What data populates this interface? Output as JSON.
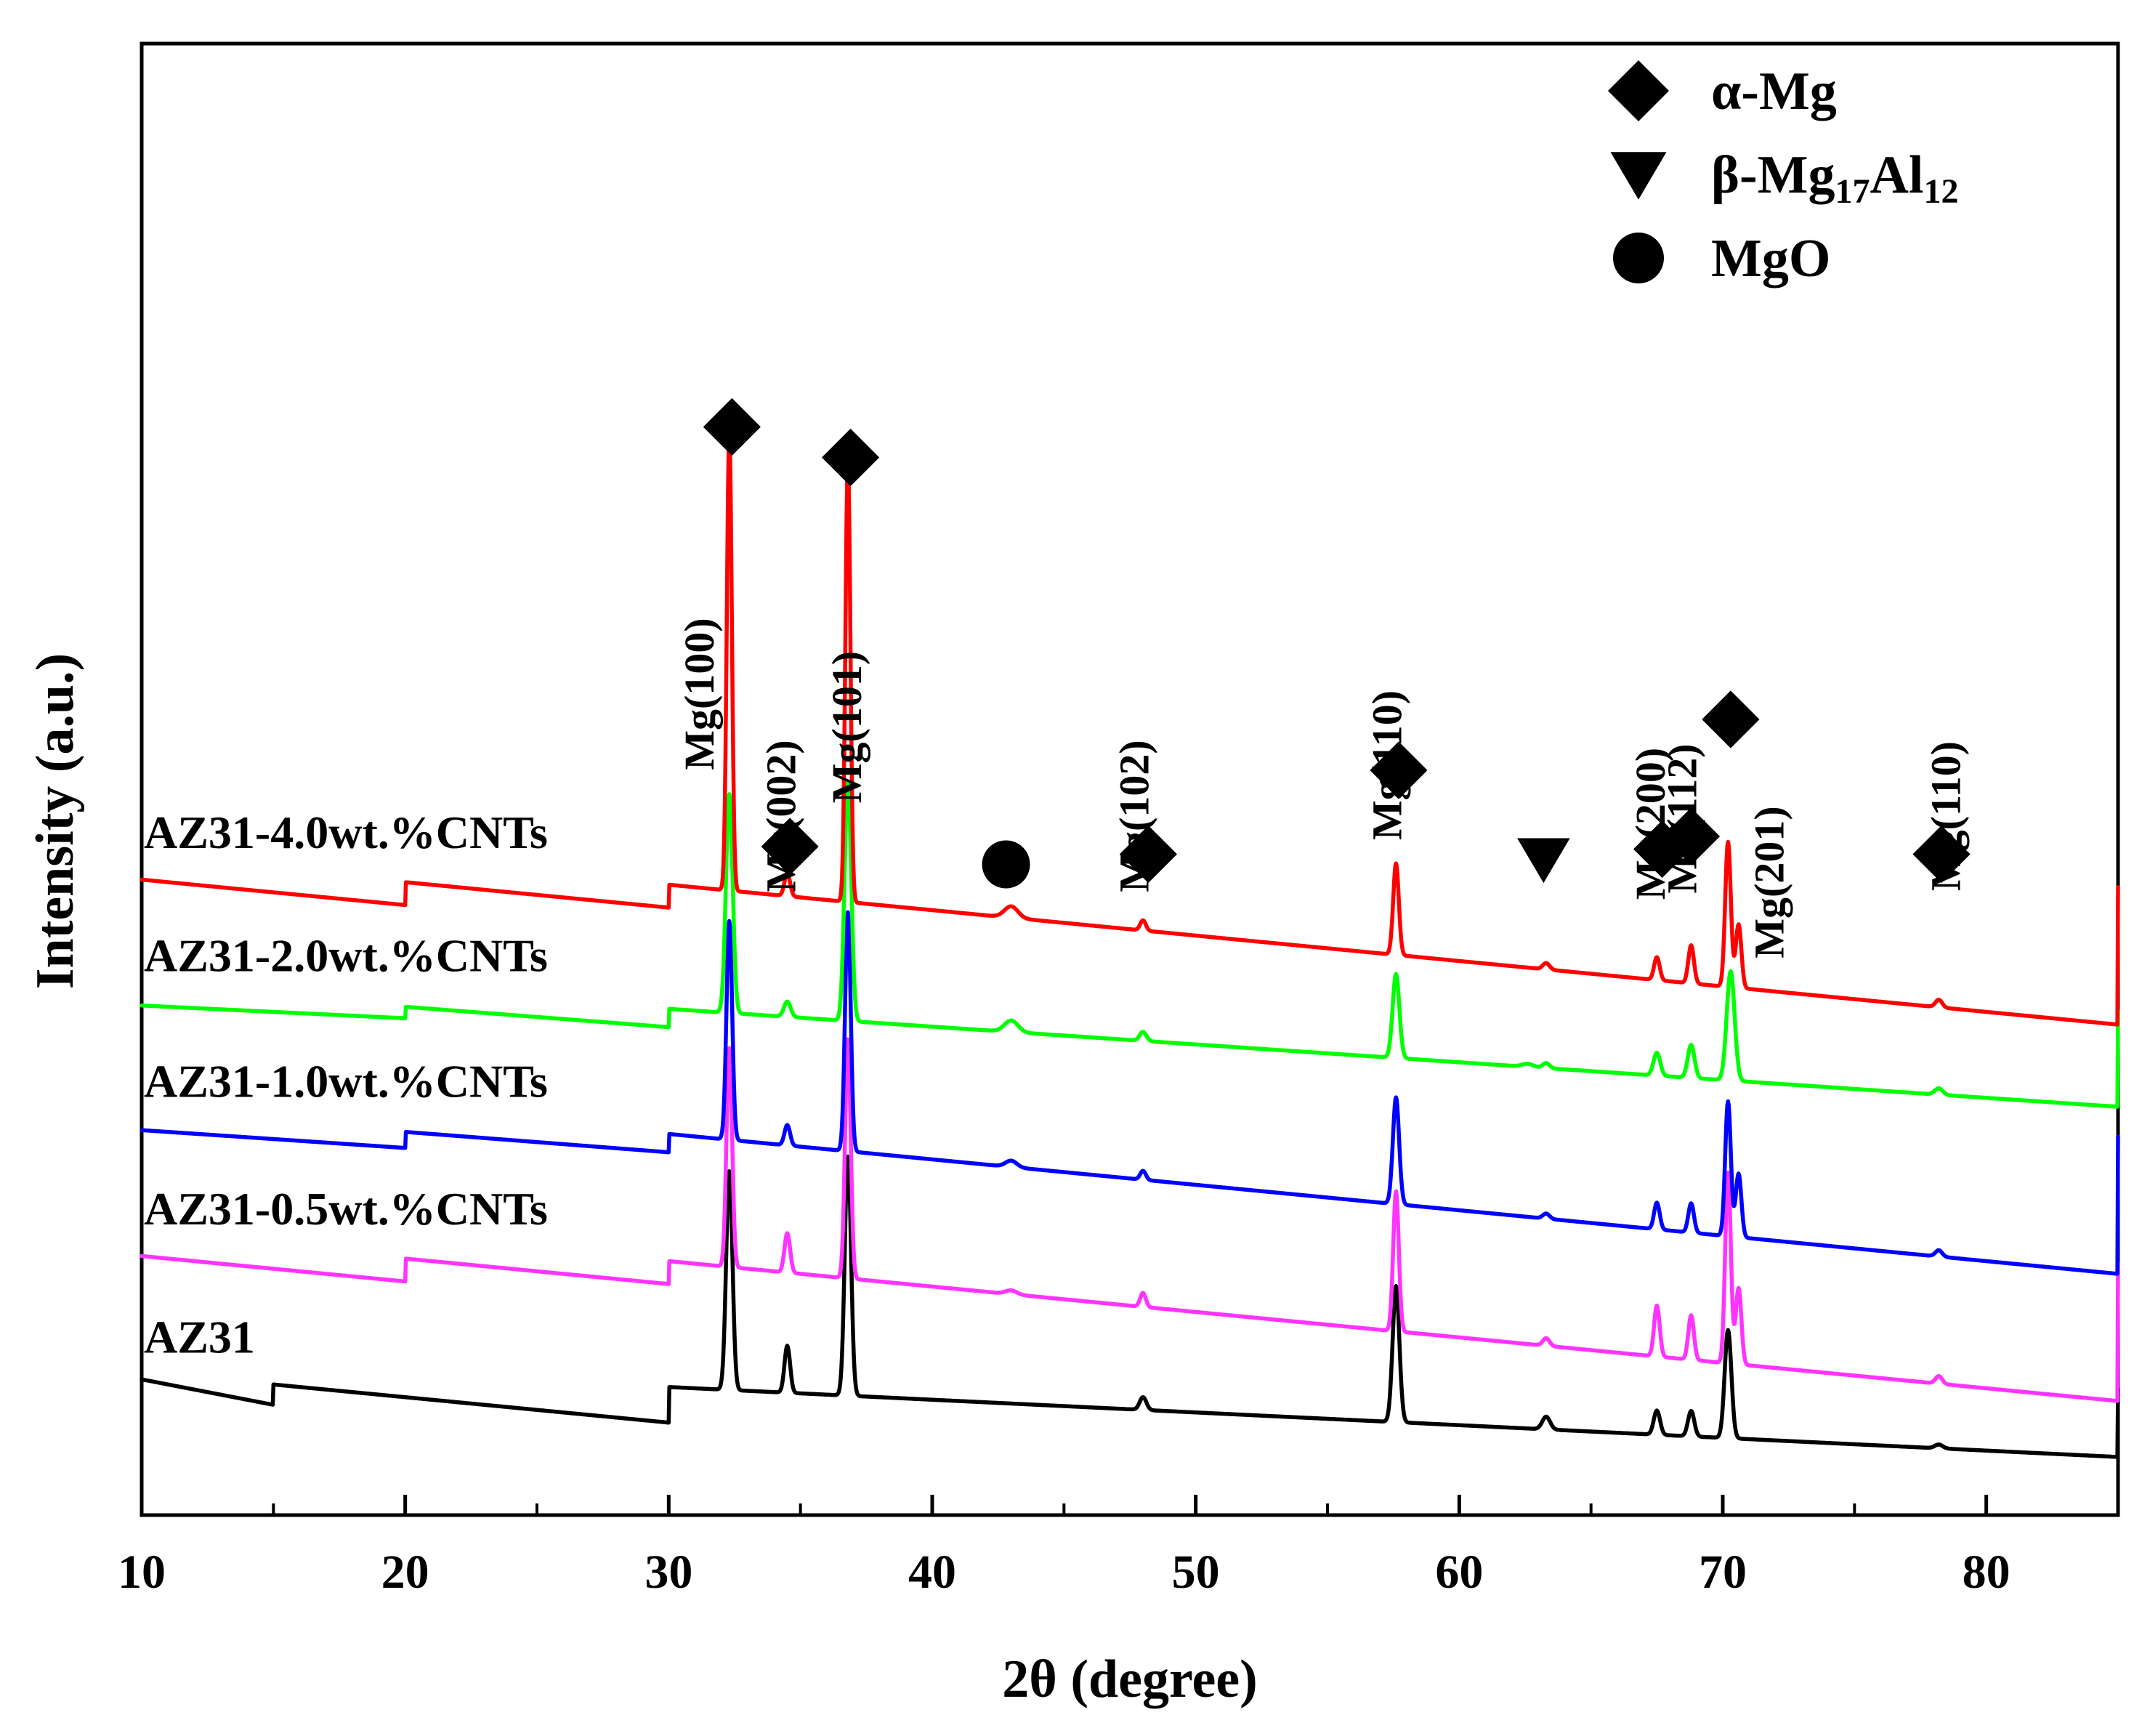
{
  "chart_data": {
    "type": "line",
    "title": "",
    "xlabel": "2θ (degree)",
    "ylabel": "Intensity (a.u.)",
    "xlim": [
      10,
      85
    ],
    "x_ticks": [
      10,
      20,
      30,
      40,
      50,
      60,
      70,
      80
    ],
    "y_ticks": [],
    "grid": false,
    "legend_position": "top-right",
    "legend": [
      {
        "marker": "diamond",
        "parts": [
          {
            "t": "α-Mg",
            "sub": false
          }
        ]
      },
      {
        "marker": "triangle-down",
        "parts": [
          {
            "t": "β-Mg",
            "sub": false
          },
          {
            "t": "17",
            "sub": true
          },
          {
            "t": "Al",
            "sub": false
          },
          {
            "t": "12",
            "sub": true
          }
        ]
      },
      {
        "marker": "circle",
        "parts": [
          {
            "t": "MgO",
            "sub": false
          }
        ]
      }
    ],
    "series": [
      {
        "name": "AZ31",
        "color": "#000000",
        "baseline": [
          [
            10,
            1.05
          ],
          [
            15,
            0.85
          ],
          [
            30,
            0.75
          ],
          [
            85,
            0.7
          ]
        ],
        "peaks": [
          [
            32.3,
            8.6,
            0.28
          ],
          [
            34.5,
            1.85,
            0.25
          ],
          [
            36.8,
            9.4,
            0.28
          ],
          [
            48.0,
            0.5,
            0.3
          ],
          [
            57.6,
            5.35,
            0.3
          ],
          [
            63.3,
            0.5,
            0.35
          ],
          [
            67.5,
            0.95,
            0.28
          ],
          [
            68.8,
            1.0,
            0.28
          ],
          [
            70.2,
            4.25,
            0.3
          ],
          [
            78.2,
            0.15,
            0.35
          ]
        ]
      },
      {
        "name": "AZ31-0.5wt.%CNTs",
        "color": "#ff33ff",
        "baseline": [
          [
            10,
            0.9
          ],
          [
            20,
            0.8
          ],
          [
            30,
            0.7
          ],
          [
            85,
            0.6
          ]
        ],
        "peaks": [
          [
            32.3,
            8.6,
            0.25
          ],
          [
            34.5,
            1.55,
            0.25
          ],
          [
            36.8,
            9.4,
            0.25
          ],
          [
            43.0,
            0.15,
            0.5
          ],
          [
            48.0,
            0.55,
            0.25
          ],
          [
            57.6,
            5.5,
            0.25
          ],
          [
            63.3,
            0.3,
            0.3
          ],
          [
            67.5,
            2.0,
            0.25
          ],
          [
            68.8,
            1.75,
            0.25
          ],
          [
            70.2,
            7.5,
            0.25
          ],
          [
            70.6,
            3.0,
            0.25
          ],
          [
            78.2,
            0.3,
            0.3
          ]
        ]
      },
      {
        "name": "AZ31-1.0wt.%CNTs",
        "color": "#0000ff",
        "baseline": [
          [
            10,
            0.85
          ],
          [
            20,
            0.78
          ],
          [
            30,
            0.7
          ],
          [
            85,
            0.6
          ]
        ],
        "peaks": [
          [
            32.3,
            8.6,
            0.25
          ],
          [
            34.5,
            0.8,
            0.25
          ],
          [
            36.8,
            9.4,
            0.25
          ],
          [
            43.0,
            0.25,
            0.5
          ],
          [
            48.0,
            0.35,
            0.25
          ],
          [
            57.6,
            4.2,
            0.28
          ],
          [
            63.3,
            0.2,
            0.3
          ],
          [
            67.5,
            1.05,
            0.25
          ],
          [
            68.8,
            1.15,
            0.25
          ],
          [
            70.2,
            5.3,
            0.25
          ],
          [
            70.6,
            2.5,
            0.25
          ],
          [
            78.2,
            0.25,
            0.3
          ]
        ]
      },
      {
        "name": "AZ31-2.0wt.%CNTs",
        "color": "#00ff00",
        "baseline": [
          [
            10,
            0.75
          ],
          [
            20,
            0.7
          ],
          [
            30,
            0.62
          ],
          [
            85,
            0.55
          ]
        ],
        "peaks": [
          [
            32.3,
            8.6,
            0.3
          ],
          [
            34.5,
            0.6,
            0.3
          ],
          [
            36.8,
            9.4,
            0.3
          ],
          [
            43.0,
            0.45,
            0.6
          ],
          [
            48.0,
            0.35,
            0.3
          ],
          [
            57.6,
            3.3,
            0.3
          ],
          [
            62.6,
            0.12,
            0.5
          ],
          [
            63.3,
            0.2,
            0.3
          ],
          [
            67.5,
            0.9,
            0.3
          ],
          [
            68.8,
            1.3,
            0.3
          ],
          [
            70.3,
            4.3,
            0.35
          ],
          [
            78.2,
            0.25,
            0.35
          ]
        ]
      },
      {
        "name": "AZ31-4.0wt.%CNTs",
        "color": "#ff0000",
        "baseline": [
          [
            10,
            0.7
          ],
          [
            20,
            0.6
          ],
          [
            30,
            0.5
          ],
          [
            85,
            0.4
          ]
        ],
        "peaks": [
          [
            32.3,
            18.0,
            0.22
          ],
          [
            34.5,
            0.9,
            0.25
          ],
          [
            36.8,
            17.4,
            0.22
          ],
          [
            43.0,
            0.45,
            0.6
          ],
          [
            48.0,
            0.4,
            0.25
          ],
          [
            57.6,
            3.6,
            0.25
          ],
          [
            63.3,
            0.25,
            0.3
          ],
          [
            67.5,
            0.9,
            0.25
          ],
          [
            68.8,
            1.5,
            0.25
          ],
          [
            70.2,
            5.7,
            0.25
          ],
          [
            70.6,
            2.5,
            0.25
          ],
          [
            78.2,
            0.3,
            0.3
          ]
        ]
      }
    ],
    "series_offsets": [
      0,
      5,
      10,
      15,
      20
    ],
    "peak_labels": [
      {
        "text": "Mg(100)",
        "x": 31.7,
        "y": 28.0
      },
      {
        "text": "Mg(101)",
        "x": 37.3,
        "y": 26.7
      },
      {
        "text": "Mg(002)",
        "x": 34.8,
        "y": 23.2
      },
      {
        "text": "Mg(102)",
        "x": 48.2,
        "y": 23.2
      },
      {
        "text": "Mg(110)",
        "x": 57.8,
        "y": 25.2
      },
      {
        "text": "Mg(200)",
        "x": 67.8,
        "y": 22.9
      },
      {
        "text": "Mg(112)",
        "x": 69.0,
        "y": 23.1
      },
      {
        "text": "Mg(201)",
        "x": 72.3,
        "y": 20.6
      },
      {
        "text": "Mg(110)",
        "x": 79.0,
        "y": 23.2
      }
    ],
    "phase_markers": [
      {
        "marker": "diamond",
        "x": 32.4,
        "y": 38.5
      },
      {
        "marker": "diamond",
        "x": 36.9,
        "y": 37.3
      },
      {
        "marker": "diamond",
        "x": 34.6,
        "y": 22.0
      },
      {
        "marker": "circle",
        "x": 42.8,
        "y": 21.3
      },
      {
        "marker": "diamond",
        "x": 48.2,
        "y": 21.7
      },
      {
        "marker": "diamond",
        "x": 57.7,
        "y": 25.0
      },
      {
        "marker": "triangle-down",
        "x": 63.2,
        "y": 21.5
      },
      {
        "marker": "diamond",
        "x": 67.7,
        "y": 21.9
      },
      {
        "marker": "diamond",
        "x": 68.8,
        "y": 22.4
      },
      {
        "marker": "diamond",
        "x": 70.3,
        "y": 27.0
      },
      {
        "marker": "diamond",
        "x": 78.3,
        "y": 21.7
      }
    ]
  }
}
